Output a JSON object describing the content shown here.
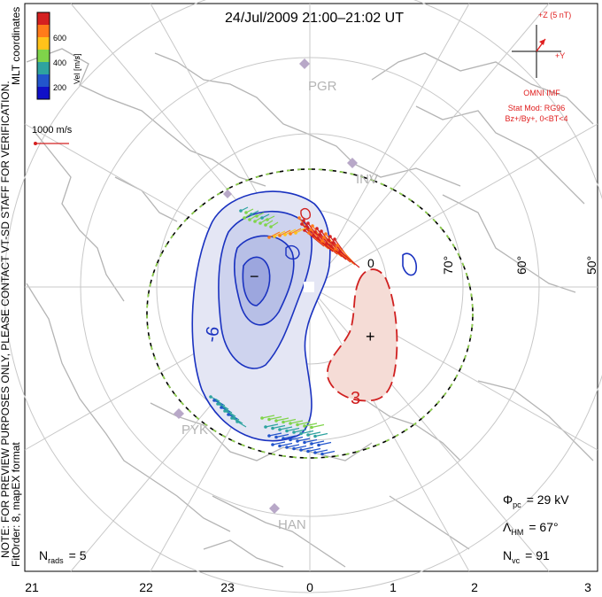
{
  "title": "24/Jul/2009 21:00–21:02 UT",
  "colorbar": {
    "label": "Vel [m/s]",
    "ticks": [
      "600",
      "400",
      "200"
    ],
    "colors": [
      "#d42020",
      "#ff7b1a",
      "#ffc21a",
      "#7fd44a",
      "#2ea3a0",
      "#2255cc",
      "#1010c8"
    ]
  },
  "side_notes": {
    "mlt": "MLT coordinates",
    "preview": "NOTE: FOR PREVIEW PURPOSES ONLY, PLEASE CONTACT VT-SD STAFF FOR VERIFICATION.",
    "fitorder": "FitOrder: 8, mapEX format"
  },
  "scale_vector": {
    "label": "1000 m/s"
  },
  "imf": {
    "z_label": "+Z (5 nT)",
    "y_label": "+Y",
    "source": "OMNI IMF",
    "model_line1": "Stat Mod: RG96",
    "model_line2": "Bz+/By+, 0<BT<4",
    "color": "#e02020"
  },
  "stations": [
    "PGR",
    "INV",
    "PYK",
    "HAN"
  ],
  "lat_labels": [
    "70°",
    "60°",
    "50°"
  ],
  "mlt_labels": [
    "21",
    "22",
    "23",
    "0",
    "1",
    "2",
    "3"
  ],
  "contours": {
    "neg_label": "-6",
    "pos_label": "3",
    "minus_sign": "−",
    "plus_sign": "+",
    "zero_label": "0"
  },
  "stats": {
    "phi_sym": "Φ",
    "phi_sub": "pc",
    "phi_val": "= 29 kV",
    "lam_sym": "Λ",
    "lam_sub": "HM",
    "lam_val": "= 67°",
    "nvc_sym": "N",
    "nvc_sub": "vc",
    "nvc_val": "= 91",
    "nrads_sym": "N",
    "nrads_sub": "rads",
    "nrads_val": "= 5"
  }
}
